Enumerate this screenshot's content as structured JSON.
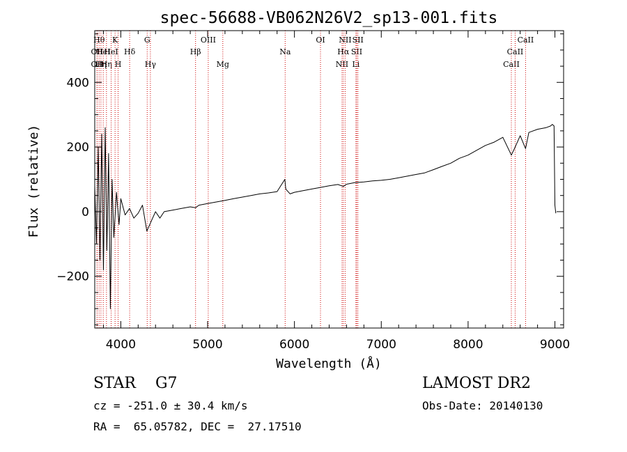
{
  "chart_data": {
    "type": "line",
    "title": "spec-56688-VB062N26V2_sp13-001.fits",
    "xlabel": "Wavelength (Å)",
    "ylabel": "Flux (relative)",
    "xlim": [
      3700,
      9100
    ],
    "ylim": [
      -360,
      560
    ],
    "x_ticks": [
      4000,
      5000,
      6000,
      7000,
      8000,
      9000
    ],
    "y_ticks": [
      -200,
      0,
      200,
      400
    ],
    "grid": false,
    "line_color": "#000000",
    "marker_color": "#cc0000",
    "series": [
      {
        "x": [
          3700,
          3720,
          3740,
          3760,
          3780,
          3800,
          3820,
          3840,
          3860,
          3880,
          3900,
          3920,
          3950,
          3980,
          4000,
          4050,
          4100,
          4150,
          4200,
          4250,
          4300,
          4350,
          4400,
          4450,
          4500,
          4600,
          4700,
          4800,
          4860,
          4900,
          5000,
          5100,
          5200,
          5300,
          5400,
          5500,
          5600,
          5700,
          5800,
          5890,
          5900,
          5950,
          6000,
          6100,
          6200,
          6300,
          6400,
          6500,
          6563,
          6600,
          6700,
          6800,
          6900,
          7000,
          7100,
          7200,
          7300,
          7400,
          7500,
          7600,
          7700,
          7800,
          7900,
          8000,
          8100,
          8200,
          8300,
          8400,
          8498,
          8542,
          8600,
          8662,
          8700,
          8800,
          8900,
          8950,
          8970,
          8990,
          9000,
          9010
        ],
        "y": [
          80,
          -100,
          200,
          -150,
          240,
          -180,
          260,
          -120,
          180,
          -300,
          100,
          -80,
          60,
          -40,
          40,
          -10,
          10,
          -20,
          -5,
          20,
          -60,
          -30,
          0,
          -20,
          0,
          5,
          10,
          15,
          12,
          20,
          25,
          30,
          35,
          40,
          45,
          50,
          55,
          58,
          62,
          100,
          70,
          55,
          60,
          65,
          70,
          75,
          80,
          84,
          78,
          85,
          90,
          92,
          95,
          97,
          100,
          105,
          110,
          115,
          120,
          130,
          140,
          150,
          165,
          175,
          190,
          205,
          215,
          230,
          175,
          200,
          235,
          195,
          245,
          255,
          260,
          265,
          270,
          265,
          20,
          -5
        ]
      }
    ],
    "line_markers": [
      {
        "x": 3727,
        "label": "OII",
        "row": 2
      },
      {
        "x": 3727,
        "label": "OII",
        "row": 3
      },
      {
        "x": 3750,
        "label": "Hθ",
        "row": 1
      },
      {
        "x": 3771,
        "label": "Hη",
        "row": 3
      },
      {
        "x": 3798,
        "label": "HeI",
        "row": 2
      },
      {
        "x": 3835,
        "label": "Hη",
        "row": 3
      },
      {
        "x": 3889,
        "label": "HeI",
        "row": 2
      },
      {
        "x": 3934,
        "label": "K",
        "row": 1
      },
      {
        "x": 3969,
        "label": "H",
        "row": 3
      },
      {
        "x": 4102,
        "label": "Hδ",
        "row": 2
      },
      {
        "x": 4304,
        "label": "G",
        "row": 1
      },
      {
        "x": 4341,
        "label": "Hγ",
        "row": 3
      },
      {
        "x": 4861,
        "label": "Hβ",
        "row": 2
      },
      {
        "x": 5007,
        "label": "OIII",
        "row": 1
      },
      {
        "x": 5175,
        "label": "Mg",
        "row": 3
      },
      {
        "x": 5893,
        "label": "Na",
        "row": 2
      },
      {
        "x": 6300,
        "label": "OI",
        "row": 1
      },
      {
        "x": 6548,
        "label": "NII",
        "row": 3
      },
      {
        "x": 6563,
        "label": "Hα",
        "row": 2
      },
      {
        "x": 6584,
        "label": "NII",
        "row": 1
      },
      {
        "x": 6717,
        "label": "SII",
        "row": 2
      },
      {
        "x": 6708,
        "label": "Li",
        "row": 3
      },
      {
        "x": 6731,
        "label": "SII",
        "row": 1
      },
      {
        "x": 8498,
        "label": "CaII",
        "row": 3
      },
      {
        "x": 8542,
        "label": "CaII",
        "row": 2
      },
      {
        "x": 8662,
        "label": "CaII",
        "row": 1
      }
    ]
  },
  "info": {
    "class_line": "STAR    G7",
    "survey": "LAMOST DR2",
    "cz_line": "cz = -251.0 ± 30.4 km/s",
    "obs_date": "Obs-Date: 20140130",
    "radec_line": "RA =  65.05782, DEC =  27.17510"
  }
}
